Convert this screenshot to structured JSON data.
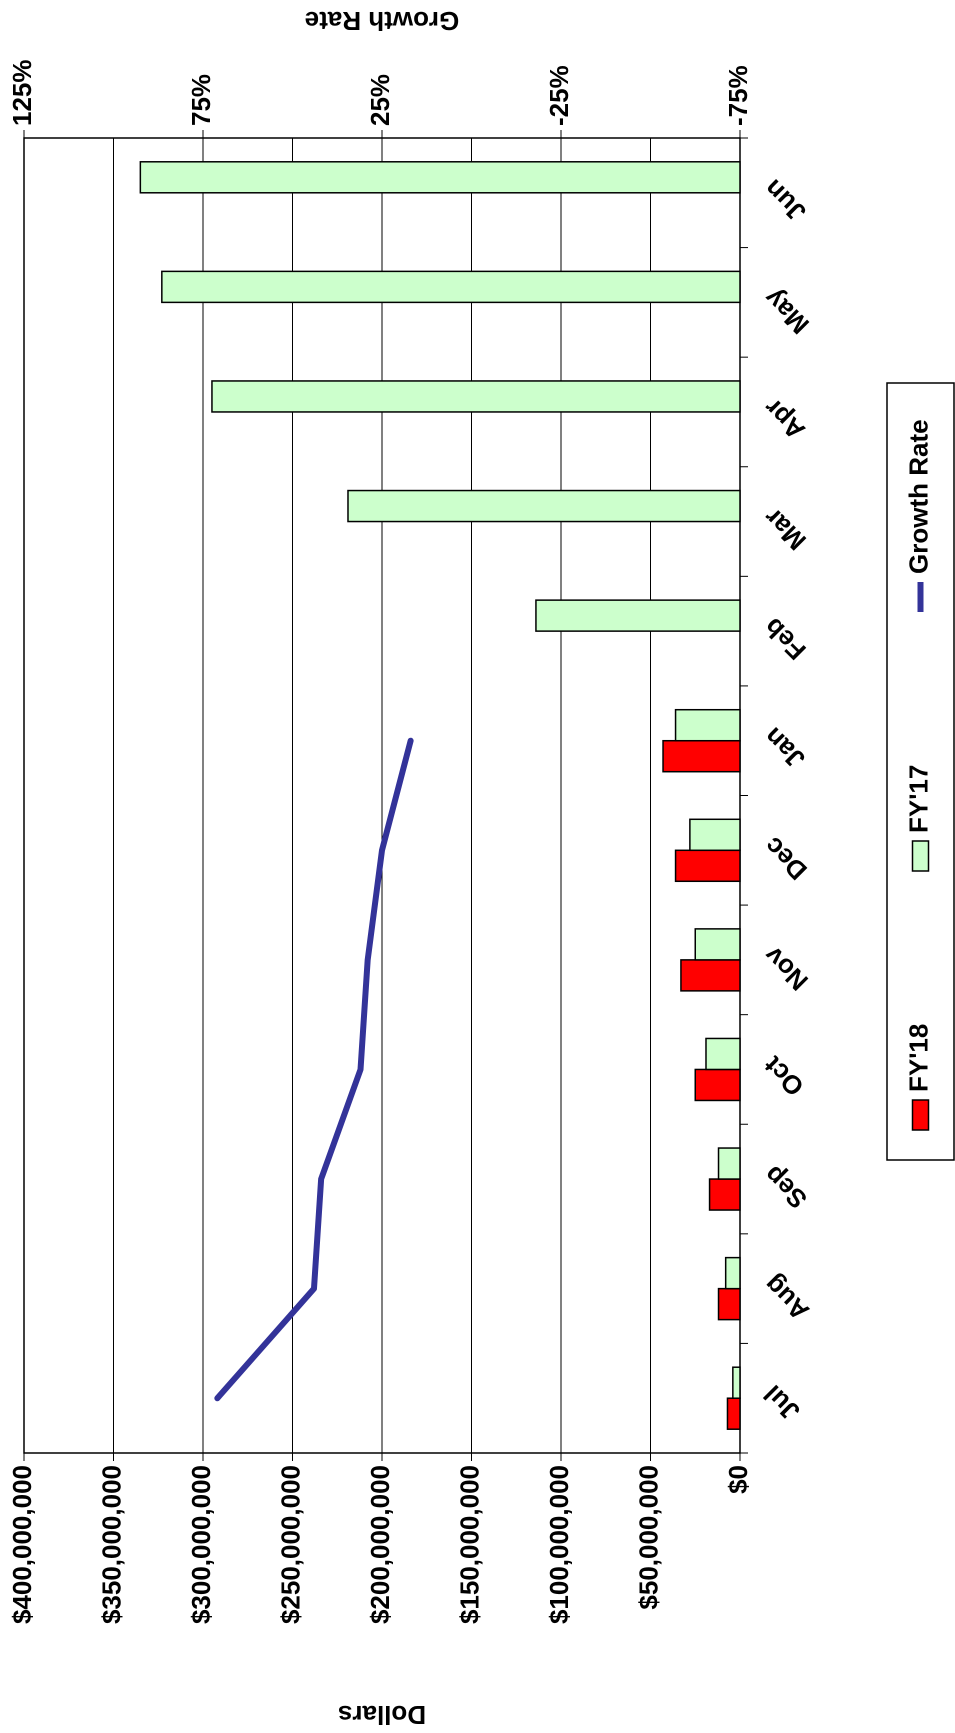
{
  "chart_data": {
    "type": "bar",
    "x_label": "Dollars",
    "y2_label": "Growth Rate",
    "categories": [
      "Jul",
      "Aug",
      "Sep",
      "Oct",
      "Nov",
      "Dec",
      "Jan",
      "Feb",
      "Mar",
      "Apr",
      "May",
      "Jun"
    ],
    "series": [
      {
        "name": "FY'18",
        "type": "bar",
        "color": "#ff0000",
        "values": [
          7000000,
          12000000,
          17000000,
          25000000,
          33000000,
          36000000,
          43000000,
          null,
          null,
          null,
          null,
          null
        ]
      },
      {
        "name": "FY'17",
        "type": "bar",
        "color": "#ccffcc",
        "values": [
          4000000,
          8000000,
          12000000,
          19000000,
          25000000,
          28000000,
          36000000,
          114000000,
          219000000,
          295000000,
          323000000,
          335000000
        ]
      },
      {
        "name": "Growth Rate",
        "type": "line",
        "axis": "y2",
        "color": "#333399",
        "values": [
          71,
          44,
          42,
          31,
          29,
          25,
          17,
          null,
          null,
          null,
          null,
          null
        ]
      }
    ],
    "ylim": [
      0,
      400000000
    ],
    "yticks": [
      {
        "value": 0,
        "label": "$0"
      },
      {
        "value": 50000000,
        "label": "$50,000,000"
      },
      {
        "value": 100000000,
        "label": "$100,000,000"
      },
      {
        "value": 150000000,
        "label": "$150,000,000"
      },
      {
        "value": 200000000,
        "label": "$200,000,000"
      },
      {
        "value": 250000000,
        "label": "$250,000,000"
      },
      {
        "value": 300000000,
        "label": "$300,000,000"
      },
      {
        "value": 350000000,
        "label": "$350,000,000"
      },
      {
        "value": 400000000,
        "label": "$400,000,000"
      }
    ],
    "y2lim": [
      -75,
      125
    ],
    "y2ticks": [
      {
        "value": -75,
        "label": "-75%"
      },
      {
        "value": -25,
        "label": "-25%"
      },
      {
        "value": 25,
        "label": "25%"
      },
      {
        "value": 75,
        "label": "75%"
      },
      {
        "value": 125,
        "label": "125%"
      }
    ],
    "grid": true,
    "legend": "bottom"
  }
}
